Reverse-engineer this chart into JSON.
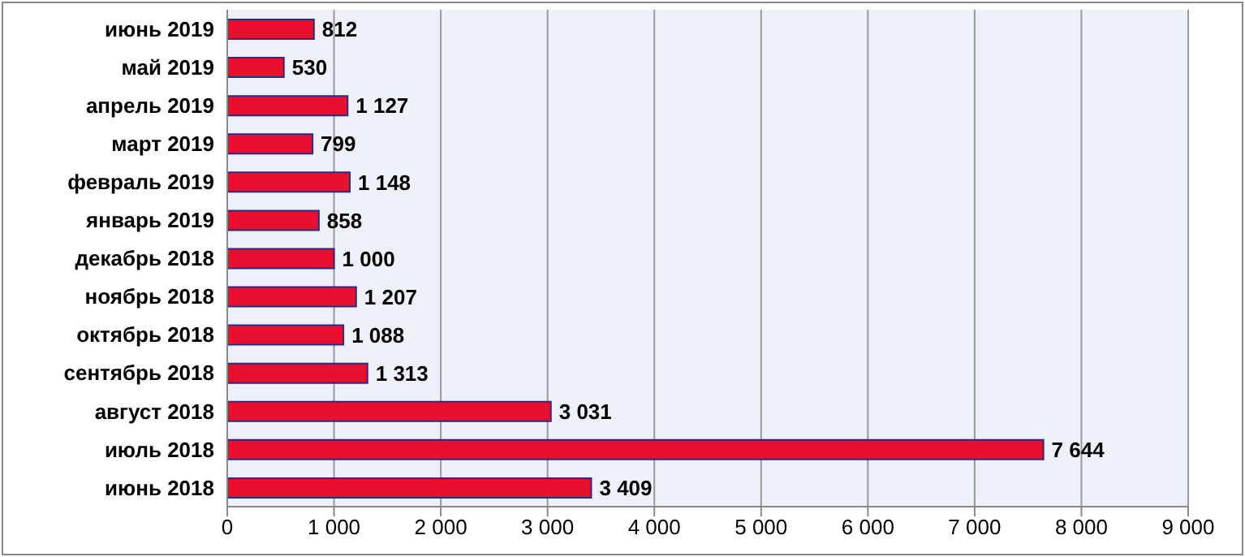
{
  "chart_data": {
    "type": "bar",
    "orientation": "horizontal",
    "categories": [
      "июнь 2019",
      "май 2019",
      "апрель 2019",
      "март 2019",
      "февраль 2019",
      "январь 2019",
      "декабрь 2018",
      "ноябрь 2018",
      "октябрь 2018",
      "сентябрь 2018",
      "август 2018",
      "июль 2018",
      "июнь 2018"
    ],
    "values": [
      812,
      530,
      1127,
      799,
      1148,
      858,
      1000,
      1207,
      1088,
      1313,
      3031,
      7644,
      3409
    ],
    "value_labels": [
      "812",
      "530",
      "1 127",
      "799",
      "1 148",
      "858",
      "1 000",
      "1 207",
      "1 088",
      "1 313",
      "3 031",
      "7 644",
      "3 409"
    ],
    "color": "#e8102e",
    "xlim": [
      0,
      9000
    ],
    "xticks": [
      0,
      {
        "value": 1000,
        "label": "1 000"
      },
      {
        "value": 2000,
        "label": "2 000"
      },
      {
        "value": 3000,
        "label": "3 000"
      },
      {
        "value": 4000,
        "label": "4 000"
      },
      {
        "value": 5000,
        "label": "5 000"
      },
      {
        "value": 6000,
        "label": "6 000"
      },
      {
        "value": 7000,
        "label": "7 000"
      },
      {
        "value": 8000,
        "label": "8 000"
      },
      {
        "value": 9000,
        "label": "9 000"
      }
    ],
    "grid": "x"
  }
}
